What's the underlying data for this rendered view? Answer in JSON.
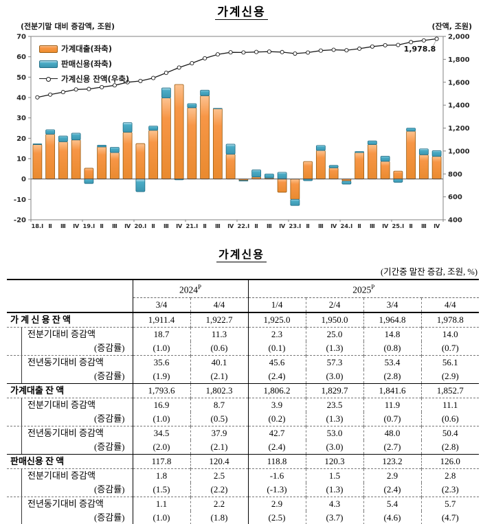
{
  "chart": {
    "title": "가계신용",
    "left_axis_label": "(전분기말 대비 증감액, 조원)",
    "right_axis_label": "(잔액, 조원)",
    "annotation": "1,978.8",
    "legend": [
      "가계대출(좌축)",
      "판매신용(좌축)",
      "가계신용 잔액(우축)"
    ]
  },
  "chart_data": {
    "type": "bar+line",
    "title": "가계신용",
    "x_labels": [
      "18.Ⅰ",
      "Ⅱ",
      "Ⅲ",
      "Ⅳ",
      "19.Ⅰ",
      "Ⅱ",
      "Ⅲ",
      "Ⅳ",
      "20.Ⅰ",
      "Ⅱ",
      "Ⅲ",
      "Ⅳ",
      "21.Ⅰ",
      "Ⅱ",
      "Ⅲ",
      "Ⅳ",
      "22.Ⅰ",
      "Ⅱ",
      "Ⅲ",
      "Ⅳ",
      "23.Ⅰ",
      "Ⅱ",
      "Ⅲ",
      "Ⅳ",
      "24.Ⅰ",
      "Ⅱ",
      "Ⅲ",
      "Ⅳ",
      "25.Ⅰ",
      "Ⅱ",
      "Ⅲ",
      "Ⅳ"
    ],
    "left_axis": {
      "min": -20,
      "max": 70,
      "step": 10,
      "unit": "조원"
    },
    "right_axis": {
      "min": 400,
      "max": 2000,
      "step": 200,
      "unit": "조원"
    },
    "grid": false,
    "legend_position": "top-left",
    "series": [
      {
        "name": "가계대출(좌축)",
        "type": "bar",
        "axis": "left",
        "color": "#F79646",
        "values": [
          16.9,
          22.0,
          18.3,
          19.2,
          5.3,
          15.8,
          13.0,
          23.0,
          17.4,
          23.9,
          39.8,
          46.4,
          35.0,
          40.9,
          34.6,
          12.2,
          -0.7,
          1.0,
          0.5,
          -6.5,
          -10.0,
          8.6,
          14.0,
          5.5,
          -1.0,
          13.0,
          16.9,
          8.7,
          3.9,
          23.5,
          11.9,
          11.1
        ]
      },
      {
        "name": "판매신용(좌축)",
        "type": "bar",
        "axis": "left",
        "color": "#4BACC6",
        "values": [
          0.4,
          2.2,
          2.8,
          3.3,
          -2.2,
          0.8,
          2.6,
          4.7,
          -6.2,
          2.1,
          4.9,
          -0.4,
          2.0,
          2.7,
          0.1,
          4.9,
          -0.3,
          3.5,
          2.0,
          3.3,
          -3.0,
          -0.8,
          2.5,
          1.2,
          -1.5,
          0.5,
          1.8,
          2.5,
          -1.6,
          1.5,
          2.9,
          2.8
        ]
      },
      {
        "name": "가계신용 잔액(우축)",
        "type": "line",
        "axis": "right",
        "color": "#1A1A1A",
        "values": [
          1468,
          1492,
          1514,
          1537,
          1541,
          1557,
          1573,
          1600,
          1611,
          1637,
          1682,
          1728,
          1766,
          1809,
          1843,
          1861,
          1860,
          1864,
          1867,
          1863,
          1850,
          1859,
          1876,
          1883,
          1879,
          1893,
          1911.4,
          1922.7,
          1925.0,
          1950.0,
          1964.8,
          1978.8
        ]
      }
    ],
    "annotation": {
      "text": "1,978.8",
      "series": 2,
      "index": 31
    }
  },
  "table": {
    "title": "가계신용",
    "unit_note": "(기간중 말잔 증감, 조원, %)",
    "col_groups": [
      {
        "year": "2024",
        "sup": "P",
        "span": 2
      },
      {
        "year": "2025",
        "sup": "P",
        "span": 4
      }
    ],
    "quarters": [
      "3/4",
      "4/4",
      "1/4",
      "2/4",
      "3/4",
      "4/4"
    ],
    "rows": [
      {
        "label": "가 계 신 용  잔 액",
        "type": "main",
        "values": [
          "1,911.4",
          "1,922.7",
          "1,925.0",
          "1,950.0",
          "1,964.8",
          "1,978.8"
        ]
      },
      {
        "label": "전분기대비 증감액",
        "type": "sub",
        "values": [
          "18.7",
          "11.3",
          "2.3",
          "25.0",
          "14.8",
          "14.0"
        ]
      },
      {
        "label": "(증감률)",
        "type": "rate",
        "values": [
          "(1.0)",
          "(0.6)",
          "(0.1)",
          "(1.3)",
          "(0.8)",
          "(0.7)"
        ]
      },
      {
        "label": "전년동기대비 증감액",
        "type": "sub",
        "values": [
          "35.6",
          "40.1",
          "45.6",
          "57.3",
          "53.4",
          "56.1"
        ]
      },
      {
        "label": "(증감률)",
        "type": "rate",
        "values": [
          "(1.9)",
          "(2.1)",
          "(2.4)",
          "(3.0)",
          "(2.8)",
          "(2.9)"
        ]
      },
      {
        "label": "가계대출 잔 액",
        "type": "main",
        "values": [
          "1,793.6",
          "1,802.3",
          "1,806.2",
          "1,829.7",
          "1,841.6",
          "1,852.7"
        ]
      },
      {
        "label": "전분기대비 증감액",
        "type": "sub",
        "values": [
          "16.9",
          "8.7",
          "3.9",
          "23.5",
          "11.9",
          "11.1"
        ]
      },
      {
        "label": "(증감률)",
        "type": "rate",
        "values": [
          "(1.0)",
          "(0.5)",
          "(0.2)",
          "(1.3)",
          "(0.7)",
          "(0.6)"
        ]
      },
      {
        "label": "전년동기대비 증감액",
        "type": "sub",
        "values": [
          "34.5",
          "37.9",
          "42.7",
          "53.0",
          "48.0",
          "50.4"
        ]
      },
      {
        "label": "(증감률)",
        "type": "rate",
        "values": [
          "(2.0)",
          "(2.1)",
          "(2.4)",
          "(3.0)",
          "(2.7)",
          "(2.8)"
        ]
      },
      {
        "label": "판매신용 잔 액",
        "type": "main",
        "values": [
          "117.8",
          "120.4",
          "118.8",
          "120.3",
          "123.2",
          "126.0"
        ]
      },
      {
        "label": "전분기대비 증감액",
        "type": "sub",
        "values": [
          "1.8",
          "2.5",
          "-1.6",
          "1.5",
          "2.9",
          "2.8"
        ]
      },
      {
        "label": "(증감률)",
        "type": "rate",
        "values": [
          "(1.5)",
          "(2.2)",
          "(-1.3)",
          "(1.3)",
          "(2.4)",
          "(2.3)"
        ]
      },
      {
        "label": "전년동기대비 증감액",
        "type": "sub",
        "values": [
          "1.1",
          "2.2",
          "2.9",
          "4.3",
          "5.4",
          "5.7"
        ]
      },
      {
        "label": "(증감률)",
        "type": "rate",
        "values": [
          "(1.0)",
          "(1.8)",
          "(2.5)",
          "(3.7)",
          "(4.6)",
          "(4.7)"
        ]
      }
    ]
  }
}
